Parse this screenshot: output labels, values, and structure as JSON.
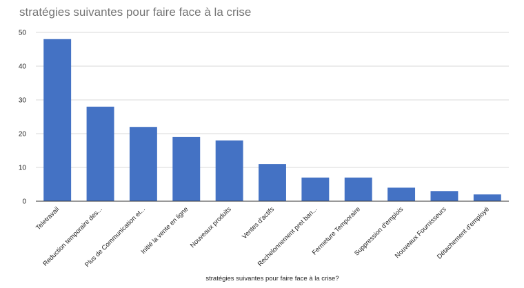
{
  "chart_data": {
    "type": "bar",
    "title": "stratégies suivantes pour faire face à la crise",
    "xlabel": "stratégies suivantes pour faire face à la crise?",
    "ylabel": "",
    "ylim": [
      0,
      50
    ],
    "yticks": [
      0,
      10,
      20,
      30,
      40,
      50
    ],
    "grid": true,
    "bar_color": "#4472c4",
    "categories": [
      "Teletravail",
      "Reduction temporaire des...",
      "Plus de Communication et...",
      "Initié la vente en ligne",
      "Nouveaux produits",
      "Ventes d'actifs",
      "Rechelonnement pret ban...",
      "Fermeture Temporaire",
      "Suppression d'emplois",
      "Nouveaux Fournisseurs",
      "Détachement d'employé"
    ],
    "values": [
      48,
      28,
      22,
      19,
      18,
      11,
      7,
      7,
      4,
      3,
      2
    ]
  }
}
